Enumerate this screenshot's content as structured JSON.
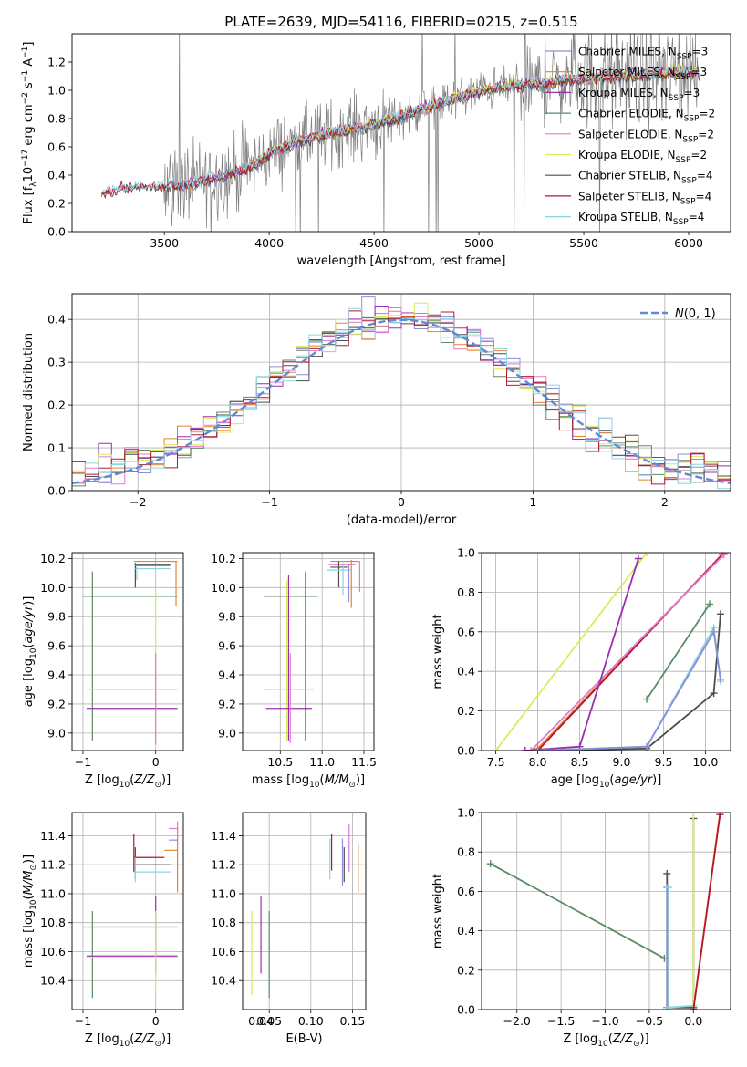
{
  "figure": {
    "title": "PLATE=2639, MJD=54116, FIBERID=0215, z=0.515"
  },
  "colors": {
    "Chabrier MILES": "#8a90d8",
    "Salpeter MILES": "#e8842e",
    "Kroupa MILES": "#9b2fae",
    "Chabrier ELODIE": "#5b8c64",
    "Salpeter ELODIE": "#e07ad1",
    "Kroupa ELODIE": "#d8ec5c",
    "Chabrier STELIB": "#4d4d4d",
    "Salpeter STELIB": "#b2182b",
    "Kroupa STELIB": "#8ed3e0",
    "data": "#808080",
    "normal": "#5b8bd9"
  },
  "chart_data": [
    {
      "id": "spectrum",
      "type": "line",
      "title": "PLATE=2639, MJD=54116, FIBERID=0215, z=0.515",
      "xlabel": "wavelength [Angstrom, rest frame]",
      "ylabel": "Flux [f_λ 10^-17 erg cm^-2 s^-1 A^-1]",
      "xlim": [
        3060,
        6200
      ],
      "ylim": [
        0,
        1.4
      ],
      "xticks": [
        3500,
        4000,
        4500,
        5000,
        5500,
        6000
      ],
      "yticks": [
        0.0,
        0.2,
        0.4,
        0.6,
        0.8,
        1.0,
        1.2
      ],
      "grid": false,
      "legend": "upper right",
      "legend_entries": [
        "Chabrier MILES, N_SSP=3",
        "Salpeter MILES, N_SSP=3",
        "Kroupa MILES, N_SSP=3",
        "Chabrier ELODIE, N_SSP=2",
        "Salpeter ELODIE, N_SSP=2",
        "Kroupa ELODIE, N_SSP=2",
        "Chabrier STELIB, N_SSP=4",
        "Salpeter STELIB, N_SSP=4",
        "Kroupa STELIB, N_SSP=4"
      ],
      "continuum": {
        "x": [
          3200,
          3300,
          3400,
          3500,
          3600,
          3700,
          3800,
          3900,
          4000,
          4100,
          4200,
          4300,
          4400,
          4500,
          4600,
          4700,
          4800,
          4900,
          5000,
          5100,
          5200,
          5300,
          5400,
          5500,
          5600,
          5700,
          5800,
          5900,
          6000,
          6050
        ],
        "y": [
          0.27,
          0.31,
          0.32,
          0.32,
          0.33,
          0.36,
          0.4,
          0.45,
          0.55,
          0.62,
          0.66,
          0.7,
          0.73,
          0.76,
          0.8,
          0.85,
          0.9,
          0.95,
          0.99,
          1.02,
          1.04,
          1.05,
          1.07,
          1.08,
          1.09,
          1.1,
          1.11,
          1.12,
          1.13,
          1.13
        ]
      }
    },
    {
      "id": "residuals",
      "type": "histogram",
      "xlabel": "(data-model)/error",
      "ylabel": "Normed distribution",
      "xlim": [
        -2.5,
        2.5
      ],
      "ylim": [
        0,
        0.46
      ],
      "xticks": [
        -2,
        -1,
        0,
        1,
        2
      ],
      "yticks": [
        0.0,
        0.1,
        0.2,
        0.3,
        0.4
      ],
      "grid": true,
      "legend": "upper right",
      "legend_entries": [
        "N(0, 1)"
      ],
      "bin_edges_start": -2.5,
      "bin_width": 0.1
    },
    {
      "id": "age-z",
      "type": "errorbar",
      "xlabel": "Z [log10(Z/Z☉)]",
      "ylabel": "age  [log10(age/yr)]",
      "xlim": [
        -1.15,
        0.38
      ],
      "ylim": [
        8.88,
        10.24
      ],
      "xticks": [
        -1,
        0
      ],
      "yticks": [
        9.0,
        9.2,
        9.4,
        9.6,
        9.8,
        10.0,
        10.2
      ],
      "grid": true
    },
    {
      "id": "age-mass",
      "type": "errorbar",
      "xlabel": "mass [log10(M/M☉)]",
      "ylabel": "",
      "xlim": [
        10.05,
        11.62
      ],
      "ylim": [
        8.88,
        10.24
      ],
      "xticks": [
        10.5,
        11.0,
        11.5
      ],
      "yticks": [
        9.0,
        9.2,
        9.4,
        9.6,
        9.8,
        10.0,
        10.2
      ],
      "grid": true
    },
    {
      "id": "weight-age",
      "type": "line",
      "xlabel": "age  [log10(age/yr)]",
      "ylabel": "mass weight",
      "xlim": [
        7.33,
        10.3
      ],
      "ylim": [
        0,
        1.0
      ],
      "xticks": [
        7.5,
        8.0,
        8.5,
        9.0,
        9.5,
        10.0
      ],
      "yticks": [
        0.0,
        0.2,
        0.4,
        0.6,
        0.8,
        1.0
      ],
      "grid": true,
      "series": [
        {
          "key": "Kroupa ELODIE",
          "points": [
            [
              7.5,
              0.0
            ],
            [
              9.3,
              1.0
            ]
          ]
        },
        {
          "key": "Salpeter MILES",
          "points": [
            [
              8.0,
              0.01
            ],
            [
              10.2,
              0.99
            ]
          ]
        },
        {
          "key": "Salpeter STELIB",
          "points": [
            [
              8.0,
              0.0
            ],
            [
              10.22,
              1.0
            ]
          ]
        },
        {
          "key": "Salpeter ELODIE",
          "points": [
            [
              7.92,
              0.0
            ],
            [
              10.22,
              0.99
            ]
          ]
        },
        {
          "key": "Kroupa MILES",
          "points": [
            [
              7.85,
              0.0
            ],
            [
              8.5,
              0.02
            ],
            [
              9.2,
              0.97
            ]
          ]
        },
        {
          "key": "Chabrier ELODIE",
          "points": [
            [
              9.3,
              0.26
            ],
            [
              10.05,
              0.74
            ]
          ]
        },
        {
          "key": "Chabrier STELIB",
          "points": [
            [
              8.0,
              0.0
            ],
            [
              9.3,
              0.01
            ],
            [
              10.1,
              0.29
            ],
            [
              10.18,
              0.69
            ]
          ]
        },
        {
          "key": "Kroupa STELIB",
          "points": [
            [
              8.0,
              0.0
            ],
            [
              9.3,
              0.02
            ],
            [
              10.1,
              0.62
            ],
            [
              10.18,
              0.35
            ]
          ]
        },
        {
          "key": "Chabrier MILES",
          "points": [
            [
              8.0,
              0.0
            ],
            [
              9.3,
              0.02
            ],
            [
              10.1,
              0.6
            ],
            [
              10.18,
              0.36
            ]
          ]
        }
      ]
    },
    {
      "id": "mass-z",
      "type": "errorbar",
      "xlabel": "Z [log10(Z/Z☉)]",
      "ylabel": "mass [log10(M/M☉)]",
      "xlim": [
        -1.15,
        0.38
      ],
      "ylim": [
        10.2,
        11.56
      ],
      "xticks": [
        -1,
        0
      ],
      "yticks": [
        10.4,
        10.6,
        10.8,
        11.0,
        11.2,
        11.4
      ],
      "grid": true
    },
    {
      "id": "mass-ebv",
      "type": "errorbar",
      "xlabel": "E(B-V)",
      "ylabel": "",
      "xlim": [
        0.018,
        0.166
      ],
      "ylim": [
        10.2,
        11.56
      ],
      "xticks": [
        0.05,
        0.1,
        0.15
      ],
      "xtick_labels": [
        "0.05",
        "0.10",
        "0.15"
      ],
      "extra_xtick_labels": [
        {
          "value": 0.04,
          "label": "0.04"
        }
      ],
      "yticks": [
        10.4,
        10.6,
        10.8,
        11.0,
        11.2,
        11.4
      ],
      "grid": true
    },
    {
      "id": "weight-z",
      "type": "line",
      "xlabel": "Z [log10(Z/Z☉)]",
      "ylabel": "mass weight",
      "xlim": [
        -2.4,
        0.42
      ],
      "ylim": [
        0,
        1.0
      ],
      "xticks": [
        -2.0,
        -1.5,
        -1.0,
        -0.5,
        0.0
      ],
      "yticks": [
        0.0,
        0.2,
        0.4,
        0.6,
        0.8,
        1.0
      ],
      "grid": true,
      "series": [
        {
          "key": "Chabrier ELODIE",
          "points": [
            [
              -2.3,
              0.74
            ],
            [
              -0.33,
              0.26
            ]
          ]
        },
        {
          "key": "Chabrier STELIB",
          "points": [
            [
              -0.3,
              0.69
            ],
            [
              -0.3,
              0.01
            ],
            [
              0.0,
              0.01
            ],
            [
              0.0,
              0.97
            ]
          ]
        },
        {
          "key": "Chabrier MILES",
          "points": [
            [
              -0.3,
              0.62
            ],
            [
              -0.3,
              0.01
            ]
          ]
        },
        {
          "key": "Kroupa STELIB",
          "points": [
            [
              -0.28,
              0.62
            ],
            [
              -0.28,
              0.01
            ],
            [
              0.0,
              0.02
            ]
          ]
        },
        {
          "key": "Kroupa ELODIE",
          "points": [
            [
              0.0,
              1.0
            ],
            [
              0.0,
              0.0
            ]
          ]
        },
        {
          "key": "Salpeter MILES",
          "points": [
            [
              0.0,
              0.0
            ],
            [
              0.3,
              1.0
            ]
          ]
        },
        {
          "key": "Salpeter STELIB",
          "points": [
            [
              0.0,
              0.0
            ],
            [
              0.3,
              0.99
            ]
          ]
        }
      ]
    }
  ]
}
